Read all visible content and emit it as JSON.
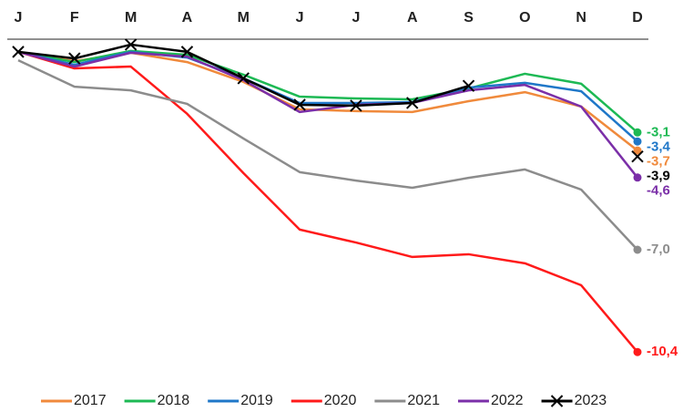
{
  "chart_data": {
    "type": "line",
    "categories": [
      "J",
      "F",
      "M",
      "A",
      "M",
      "J",
      "J",
      "A",
      "S",
      "O",
      "N",
      "D"
    ],
    "ylim": [
      -10.8,
      0
    ],
    "series": [
      {
        "name": "2017",
        "color": "#f08a3c",
        "values": [
          -0.42,
          -0.73,
          -0.45,
          -0.76,
          -1.42,
          -2.33,
          -2.39,
          -2.42,
          -2.06,
          -1.76,
          -2.24,
          -3.7
        ],
        "value_labels": [
          null,
          null,
          null,
          null,
          null,
          null,
          null,
          null,
          null,
          null,
          null,
          "-3,7"
        ]
      },
      {
        "name": "2018",
        "color": "#1db954",
        "values": [
          -0.42,
          -0.76,
          -0.39,
          -0.52,
          -1.18,
          -1.91,
          -1.97,
          -2.0,
          -1.64,
          -1.15,
          -1.48,
          -3.1
        ],
        "value_labels": [
          null,
          null,
          null,
          null,
          null,
          null,
          null,
          null,
          null,
          null,
          null,
          "-3,1"
        ]
      },
      {
        "name": "2019",
        "color": "#1f77c8",
        "values": [
          -0.42,
          -0.85,
          -0.42,
          -0.61,
          -1.3,
          -2.12,
          -2.12,
          -2.09,
          -1.61,
          -1.45,
          -1.73,
          -3.4
        ],
        "value_labels": [
          null,
          null,
          null,
          null,
          null,
          null,
          null,
          null,
          null,
          null,
          null,
          "-3,4"
        ]
      },
      {
        "name": "2020",
        "color": "#ff1a1a",
        "values": [
          -0.42,
          -0.97,
          -0.91,
          -2.48,
          -4.45,
          -6.33,
          -6.76,
          -7.24,
          -7.15,
          -7.45,
          -8.18,
          -10.4
        ],
        "value_labels": [
          null,
          null,
          null,
          null,
          null,
          null,
          null,
          null,
          null,
          null,
          null,
          "-10,4"
        ]
      },
      {
        "name": "2021",
        "color": "#8c8c8c",
        "values": [
          -0.7,
          -1.58,
          -1.7,
          -2.15,
          -3.3,
          -4.42,
          -4.7,
          -4.94,
          -4.61,
          -4.33,
          -5.0,
          -7.0
        ],
        "value_labels": [
          null,
          null,
          null,
          null,
          null,
          null,
          null,
          null,
          null,
          null,
          null,
          "-7,0"
        ]
      },
      {
        "name": "2022",
        "color": "#7b2fa8",
        "values": [
          -0.42,
          -0.91,
          -0.45,
          -0.58,
          -1.36,
          -2.42,
          -2.18,
          -2.12,
          -1.7,
          -1.52,
          -2.24,
          -4.6
        ],
        "value_labels": [
          null,
          null,
          null,
          null,
          null,
          null,
          null,
          null,
          null,
          null,
          null,
          "-4,6"
        ]
      },
      {
        "name": "2023",
        "color": "#000000",
        "marker": "x",
        "values": [
          -0.42,
          -0.64,
          -0.18,
          -0.42,
          -1.3,
          -2.18,
          -2.21,
          -2.12,
          -1.55,
          null,
          null,
          -3.9
        ],
        "value_labels": [
          null,
          null,
          null,
          null,
          null,
          null,
          null,
          null,
          null,
          null,
          null,
          "-3,9"
        ]
      }
    ],
    "legend": "bottom"
  }
}
